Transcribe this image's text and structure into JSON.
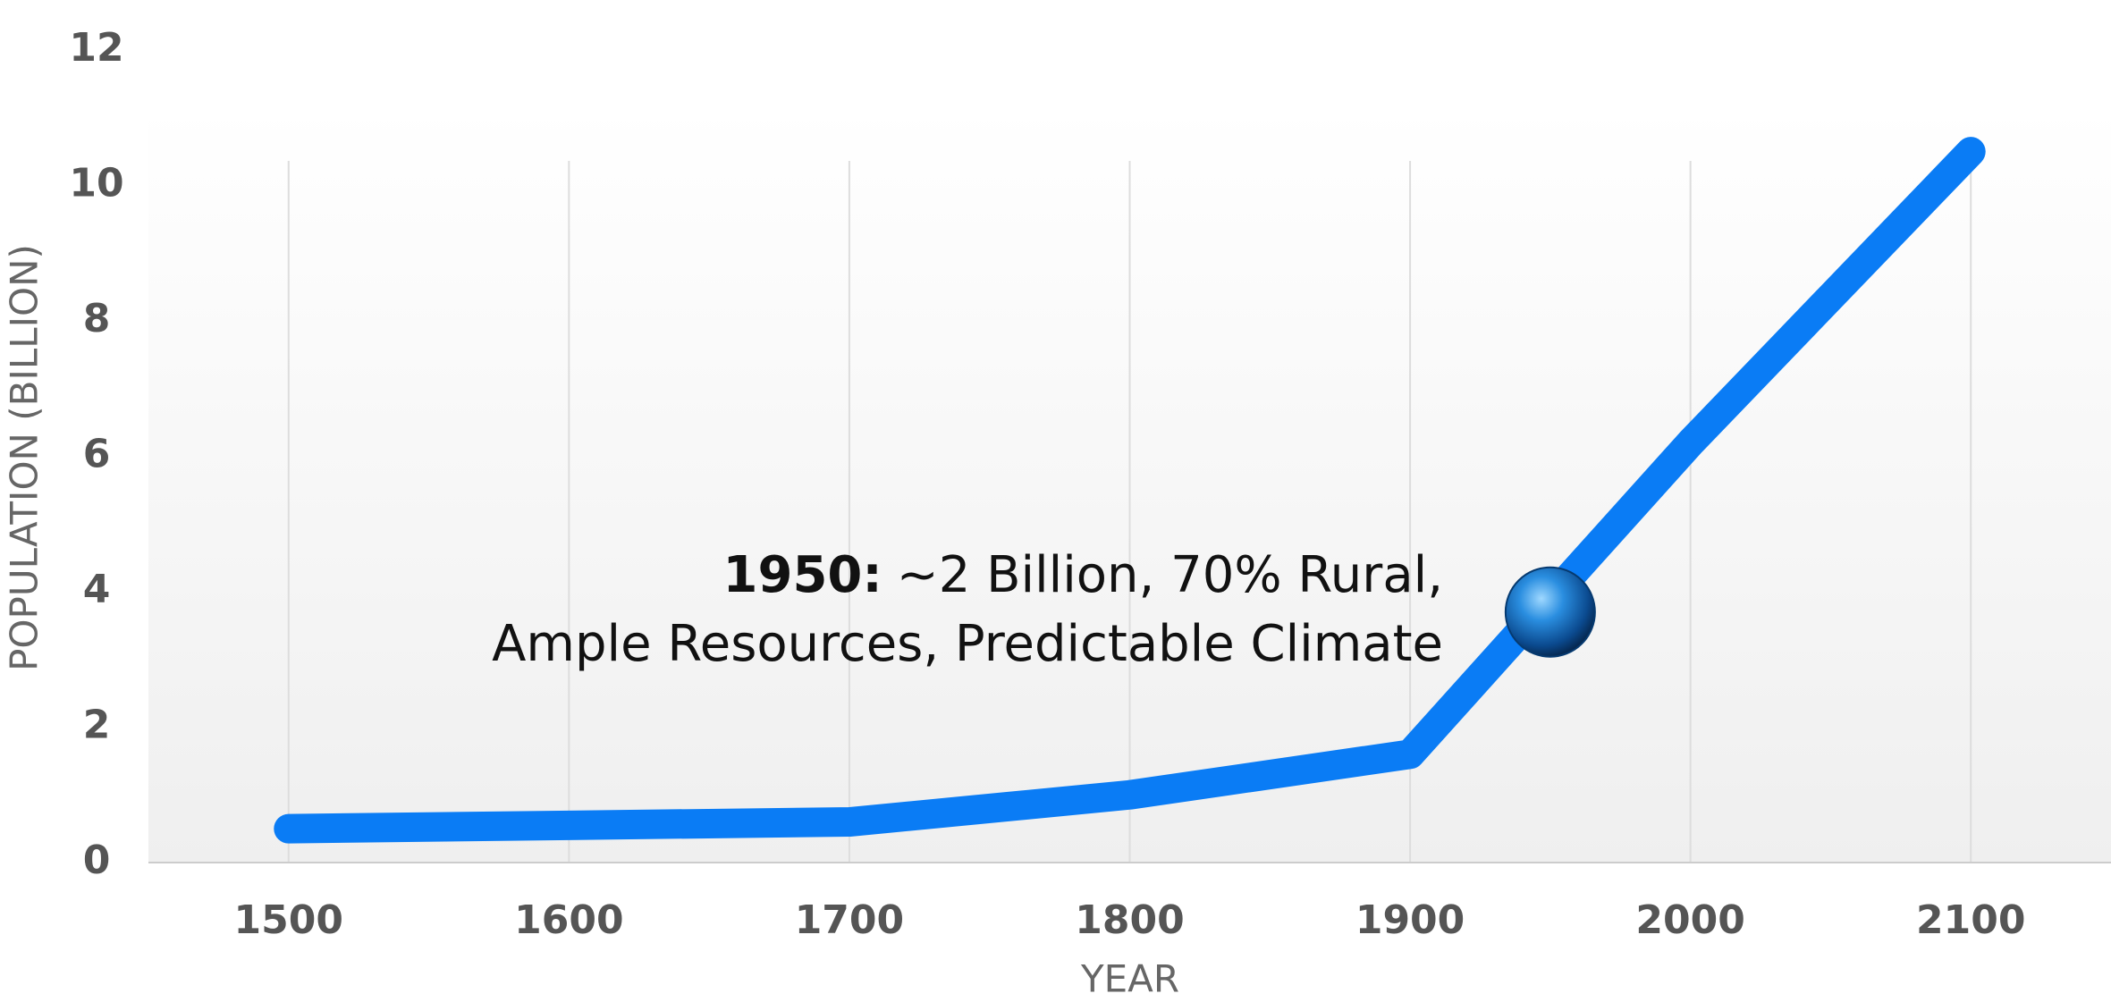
{
  "chart_data": {
    "type": "line",
    "x_label": "YEAR",
    "y_label": "POPULATION (BILLION)",
    "x": [
      1500,
      1600,
      1700,
      1800,
      1900,
      2000,
      2100
    ],
    "series": [
      {
        "color": "#0a7cf5",
        "values": [
          0.5,
          0.55,
          0.6,
          1.0,
          1.6,
          6.2,
          10.5
        ]
      }
    ],
    "xlim": [
      1450,
      2150
    ],
    "xticks": [
      1500,
      1600,
      1700,
      1800,
      1900,
      2000,
      2100
    ],
    "ylim": [
      0,
      12
    ],
    "yticks": [
      0,
      2,
      4,
      6,
      8,
      10,
      12
    ],
    "grid": "x",
    "annotation": {
      "x": 1950,
      "y": 3.7,
      "bold": "1950:",
      "lines": [
        "~2 Billion, 70% Rural,",
        "Ample Resources, Predictable Climate"
      ]
    }
  }
}
